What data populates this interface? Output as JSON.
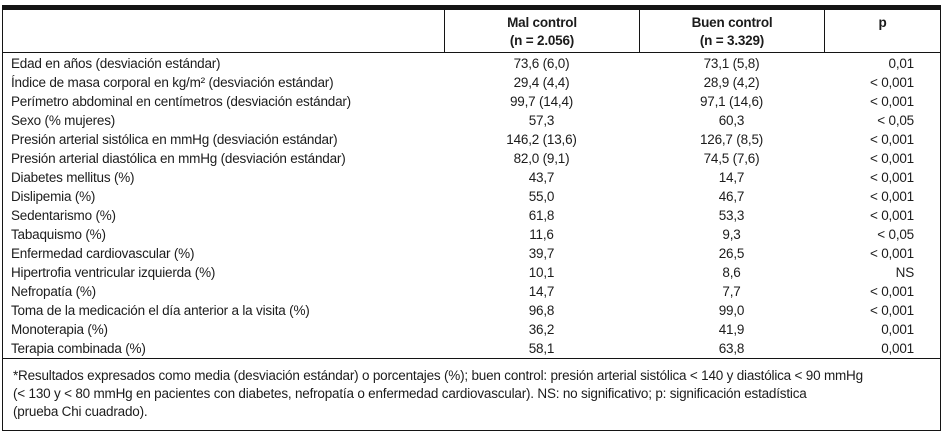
{
  "colors": {
    "background": "#ffffff",
    "text": "#1c1c1c",
    "rules": "#141414"
  },
  "table": {
    "header": {
      "mal_control": {
        "line1": "Mal control",
        "line2": "(n = 2.056)"
      },
      "buen_control": {
        "line1": "Buen control",
        "line2": "(n = 3.329)"
      },
      "p": "p"
    },
    "rows": [
      {
        "label": "Edad en años (desviación estándar)",
        "mal": "73,6 (6,0)",
        "buen": "73,1 (5,8)",
        "p": "0,01"
      },
      {
        "label": "Índice de masa corporal en kg/m² (desviación estándar)",
        "mal": "29,4 (4,4)",
        "buen": "28,9 (4,2)",
        "p": "< 0,001"
      },
      {
        "label": "Perímetro abdominal en centímetros (desviación estándar)",
        "mal": "99,7 (14,4)",
        "buen": "97,1 (14,6)",
        "p": "< 0,001"
      },
      {
        "label": "Sexo (% mujeres)",
        "mal": "57,3",
        "buen": "60,3",
        "p": "< 0,05"
      },
      {
        "label": "Presión arterial sistólica en mmHg (desviación estándar)",
        "mal": "146,2 (13,6)",
        "buen": "126,7 (8,5)",
        "p": "< 0,001"
      },
      {
        "label": "Presión arterial diastólica en mmHg (desviación estándar)",
        "mal": "82,0 (9,1)",
        "buen": "74,5 (7,6)",
        "p": "< 0,001"
      },
      {
        "label": "Diabetes mellitus (%)",
        "mal": "43,7",
        "buen": "14,7",
        "p": "< 0,001"
      },
      {
        "label": "Dislipemia (%)",
        "mal": "55,0",
        "buen": "46,7",
        "p": "< 0,001"
      },
      {
        "label": "Sedentarismo (%)",
        "mal": "61,8",
        "buen": "53,3",
        "p": "< 0,001"
      },
      {
        "label": "Tabaquismo (%)",
        "mal": "11,6",
        "buen": "9,3",
        "p": "< 0,05"
      },
      {
        "label": "Enfermedad cardiovascular (%)",
        "mal": "39,7",
        "buen": "26,5",
        "p": "< 0,001"
      },
      {
        "label": "Hipertrofia ventricular izquierda (%)",
        "mal": "10,1",
        "buen": "8,6",
        "p": "NS"
      },
      {
        "label": "Nefropatía (%)",
        "mal": "14,7",
        "buen": "7,7",
        "p": "< 0,001"
      },
      {
        "label": "Toma de la medicación el día anterior a la visita (%)",
        "mal": "96,8",
        "buen": "99,0",
        "p": "< 0,001"
      },
      {
        "label": "Monoterapia (%)",
        "mal": "36,2",
        "buen": "41,9",
        "p": "0,001"
      },
      {
        "label": "Terapia combinada (%)",
        "mal": "58,1",
        "buen": "63,8",
        "p": "0,001"
      }
    ]
  },
  "footnote": {
    "lines": [
      "*Resultados expresados como media (desviación estándar) o porcentajes (%); buen control: presión arterial sistólica < 140 y diastólica < 90 mmHg",
      "(< 130 y < 80 mmHg en pacientes con diabetes, nefropatía o enfermedad cardiovascular). NS: no significativo; p: significación estadística",
      "(prueba Chi cuadrado)."
    ]
  }
}
